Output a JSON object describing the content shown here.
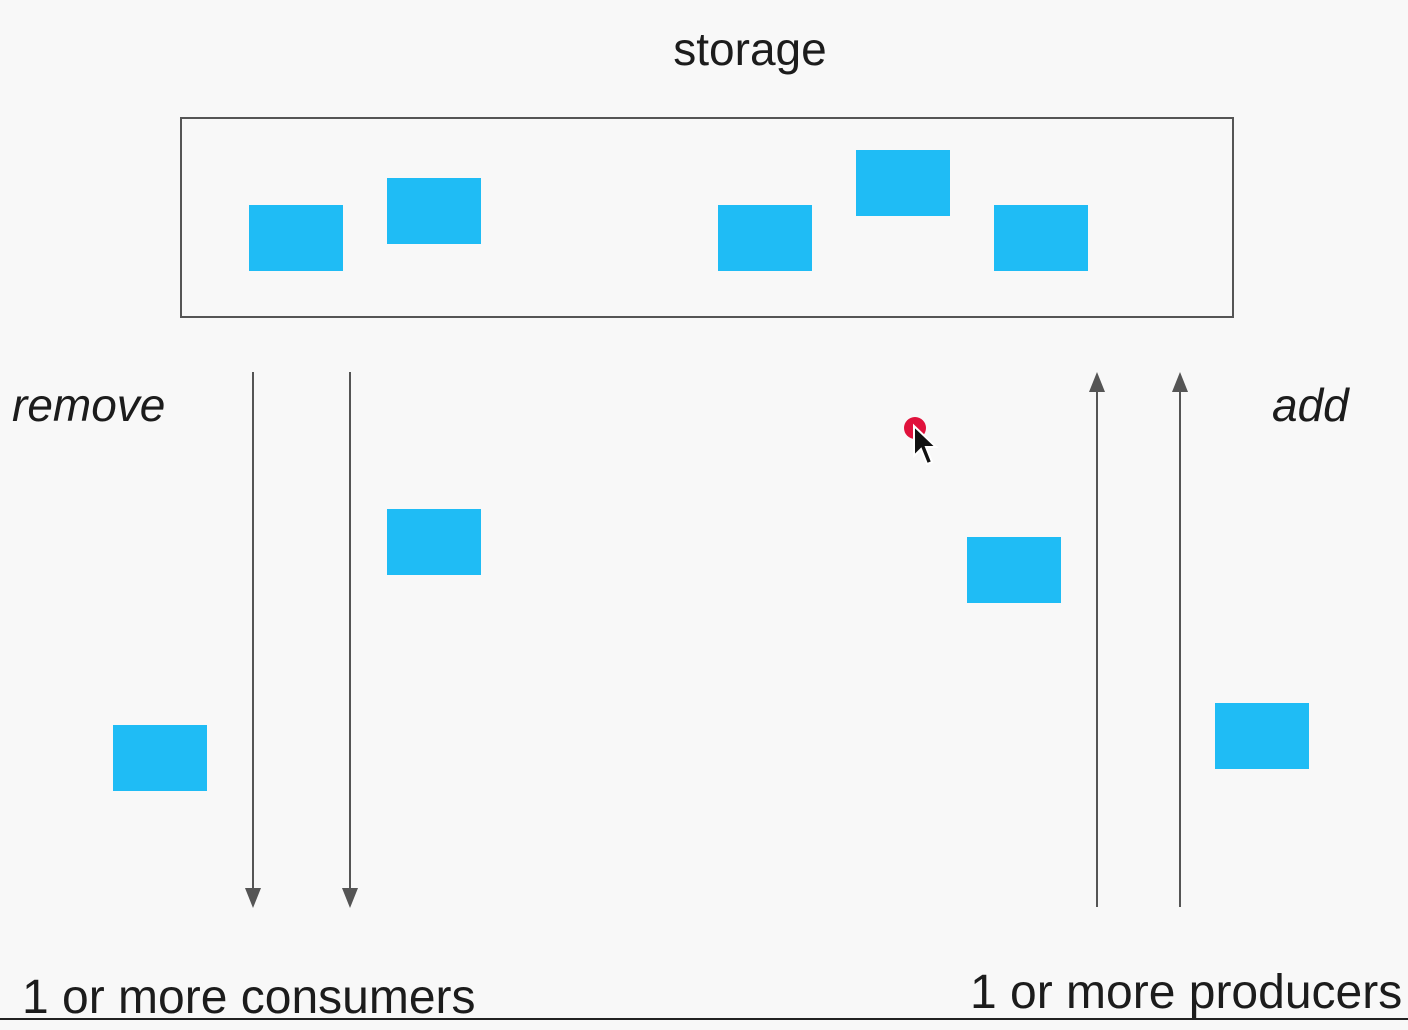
{
  "labels": {
    "storage": "storage",
    "remove": "remove",
    "add": "add",
    "consumers": "1 or more consumers",
    "producers": "1 or more producers"
  },
  "colors": {
    "item": "#1fbcf5",
    "box_border": "#555555",
    "arrow": "#555555",
    "cursor_dot": "#e0123c"
  },
  "icons": {
    "cursor": "mouse-pointer-icon"
  }
}
